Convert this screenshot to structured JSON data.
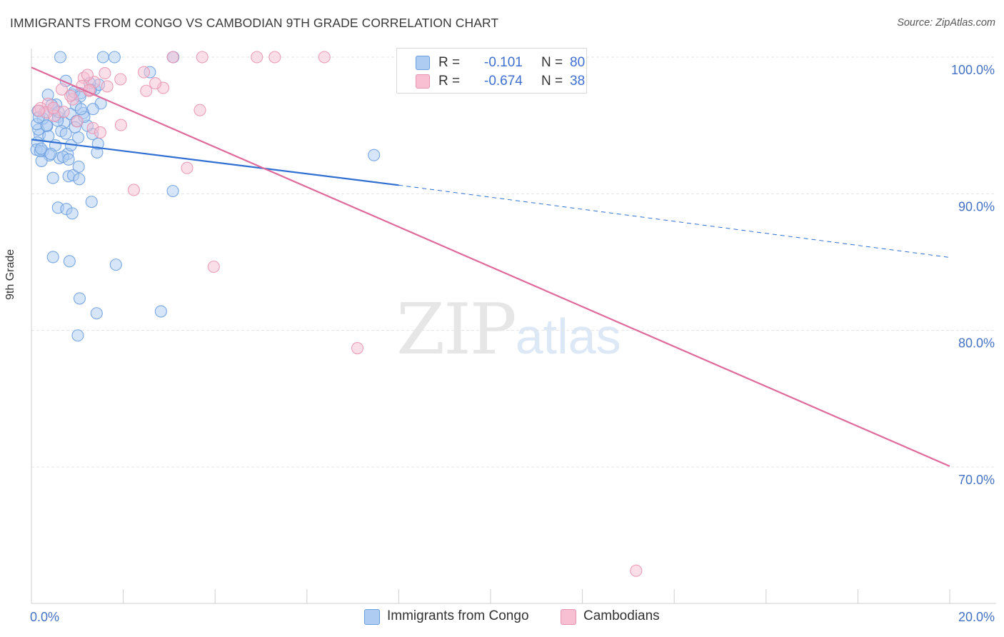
{
  "title": "IMMIGRANTS FROM CONGO VS CAMBODIAN 9TH GRADE CORRELATION CHART",
  "source": "Source: ZipAtlas.com",
  "watermark": {
    "zip": "ZIP",
    "atlas": "atlas"
  },
  "colors": {
    "blue_fill": "#aecbf1",
    "blue_stroke": "#6a9fe0",
    "blue_line": "#2f6fd1",
    "pink_fill": "#f7bfd1",
    "pink_stroke": "#e893b0",
    "pink_line": "#e0699b",
    "tick_text": "#4472c4",
    "grid": "#e4e4e4"
  },
  "legend_top": [
    {
      "r_label": "R =",
      "r_value": "-0.101",
      "n_label": "N =",
      "n_value": "80"
    },
    {
      "r_label": "R =",
      "r_value": "-0.674",
      "n_label": "N =",
      "n_value": "38"
    }
  ],
  "legend_bottom": [
    "Immigrants from Congo",
    "Cambodians"
  ],
  "chart_data": {
    "type": "scatter",
    "title": "IMMIGRANTS FROM CONGO VS CAMBODIAN 9TH GRADE CORRELATION CHART",
    "xlabel": "",
    "ylabel": "9th Grade",
    "xlim": [
      0,
      0.2
    ],
    "ylim": [
      0.6,
      1.0
    ],
    "x_tick_labels": [
      "0.0%",
      "20.0%"
    ],
    "y_ticks": [
      0.7,
      0.8,
      0.9,
      1.0
    ],
    "y_tick_labels": [
      "70.0%",
      "80.0%",
      "90.0%",
      "100.0%"
    ],
    "grid": true,
    "series": [
      {
        "name": "Immigrants from Congo",
        "R": -0.101,
        "N": 80,
        "trend": {
          "x0": 0.0,
          "y0": 0.9397,
          "x1": 0.08,
          "y1": 0.9063,
          "x_dash_end": 0.2,
          "y_dash_end": 0.8534
        },
        "points": [
          [
            0.0063,
            1.0
          ],
          [
            0.0181,
            1.0
          ],
          [
            0.0156,
            1.0
          ],
          [
            0.0309,
            1.0
          ],
          [
            0.0258,
            0.989
          ],
          [
            0.0014,
            0.9606
          ],
          [
            0.0029,
            0.9596
          ],
          [
            0.0048,
            0.9617
          ],
          [
            0.0034,
            0.9495
          ],
          [
            0.0058,
            0.9563
          ],
          [
            0.0071,
            0.9521
          ],
          [
            0.0085,
            0.9584
          ],
          [
            0.0098,
            0.9532
          ],
          [
            0.0018,
            0.9433
          ],
          [
            0.0037,
            0.9422
          ],
          [
            0.0065,
            0.9459
          ],
          [
            0.0052,
            0.9354
          ],
          [
            0.0013,
            0.9375
          ],
          [
            0.0025,
            0.9312
          ],
          [
            0.0039,
            0.9281
          ],
          [
            0.0061,
            0.9261
          ],
          [
            0.0079,
            0.9292
          ],
          [
            0.0022,
            0.924
          ],
          [
            0.0086,
            0.9355
          ],
          [
            0.0102,
            0.9412
          ],
          [
            0.0054,
            0.9652
          ],
          [
            0.0089,
            0.9726
          ],
          [
            0.0107,
            0.9736
          ],
          [
            0.0138,
            0.9766
          ],
          [
            0.0151,
            0.9661
          ],
          [
            0.0134,
            0.962
          ],
          [
            0.0113,
            0.959
          ],
          [
            0.0147,
            0.9798
          ],
          [
            0.0075,
            0.9826
          ],
          [
            0.0036,
            0.9724
          ],
          [
            0.0011,
            0.9323
          ],
          [
            0.0019,
            0.9312
          ],
          [
            0.0042,
            0.9292
          ],
          [
            0.0069,
            0.9271
          ],
          [
            0.0081,
            0.9251
          ],
          [
            0.0143,
            0.9303
          ],
          [
            0.0145,
            0.9366
          ],
          [
            0.0133,
            0.9437
          ],
          [
            0.0095,
            0.9487
          ],
          [
            0.0122,
            0.9498
          ],
          [
            0.0115,
            0.9563
          ],
          [
            0.0047,
            0.9116
          ],
          [
            0.0081,
            0.9128
          ],
          [
            0.0091,
            0.9135
          ],
          [
            0.0104,
            0.9107
          ],
          [
            0.0103,
            0.9198
          ],
          [
            0.0131,
            0.8941
          ],
          [
            0.0058,
            0.8898
          ],
          [
            0.0076,
            0.8888
          ],
          [
            0.0089,
            0.8856
          ],
          [
            0.0308,
            0.902
          ],
          [
            0.0047,
            0.8537
          ],
          [
            0.0083,
            0.8506
          ],
          [
            0.0184,
            0.8481
          ],
          [
            0.0105,
            0.8234
          ],
          [
            0.0142,
            0.8125
          ],
          [
            0.0282,
            0.8139
          ],
          [
            0.0101,
            0.7963
          ],
          [
            0.0746,
            0.9283
          ],
          [
            0.0057,
            0.9535
          ],
          [
            0.0093,
            0.9745
          ],
          [
            0.0127,
            0.981
          ],
          [
            0.0106,
            0.9712
          ],
          [
            0.0025,
            0.955
          ],
          [
            0.0044,
            0.965
          ],
          [
            0.0015,
            0.947
          ],
          [
            0.0012,
            0.951
          ],
          [
            0.0075,
            0.944
          ],
          [
            0.0059,
            0.96
          ],
          [
            0.0097,
            0.965
          ],
          [
            0.0129,
            0.976
          ],
          [
            0.0016,
            0.956
          ],
          [
            0.0108,
            0.962
          ],
          [
            0.0021,
            0.933
          ],
          [
            0.0033,
            0.95
          ]
        ]
      },
      {
        "name": "Cambodians",
        "R": -0.674,
        "N": 38,
        "trend": {
          "x0": 0.0,
          "y0": 0.9925,
          "x1": 0.2,
          "y1": 0.7006
        },
        "points": [
          [
            0.0308,
            1.0
          ],
          [
            0.0372,
            1.0
          ],
          [
            0.0491,
            1.0
          ],
          [
            0.053,
            1.0
          ],
          [
            0.0638,
            1.0
          ],
          [
            0.0114,
            0.9849
          ],
          [
            0.0194,
            0.9838
          ],
          [
            0.0245,
            0.989
          ],
          [
            0.0126,
            0.9753
          ],
          [
            0.0165,
            0.9786
          ],
          [
            0.025,
            0.9753
          ],
          [
            0.0287,
            0.9775
          ],
          [
            0.0137,
            0.9818
          ],
          [
            0.009,
            0.9691
          ],
          [
            0.0036,
            0.9659
          ],
          [
            0.007,
            0.96
          ],
          [
            0.002,
            0.9627
          ],
          [
            0.005,
            0.957
          ],
          [
            0.01,
            0.953
          ],
          [
            0.0033,
            0.9595
          ],
          [
            0.0367,
            0.9612
          ],
          [
            0.0195,
            0.9503
          ],
          [
            0.0134,
            0.9481
          ],
          [
            0.015,
            0.9449
          ],
          [
            0.0339,
            0.9189
          ],
          [
            0.0223,
            0.9028
          ],
          [
            0.0397,
            0.8466
          ],
          [
            0.071,
            0.787
          ],
          [
            0.1317,
            0.6241
          ],
          [
            0.0122,
            0.987
          ],
          [
            0.0085,
            0.9717
          ],
          [
            0.0066,
            0.9764
          ],
          [
            0.016,
            0.9882
          ],
          [
            0.027,
            0.9808
          ],
          [
            0.011,
            0.9788
          ],
          [
            0.0048,
            0.9628
          ],
          [
            0.0126,
            0.976
          ],
          [
            0.0016,
            0.9608
          ]
        ]
      }
    ]
  }
}
